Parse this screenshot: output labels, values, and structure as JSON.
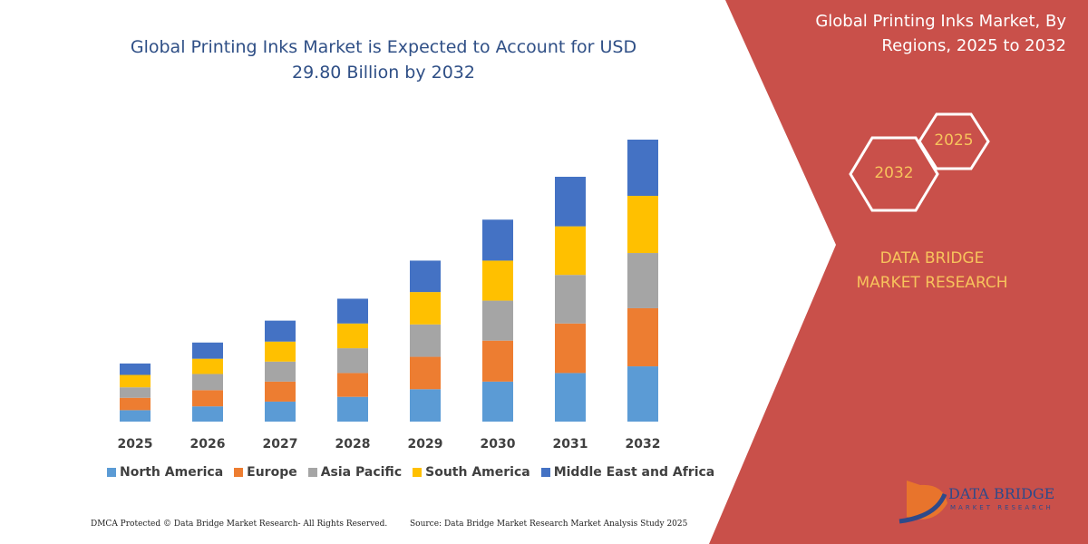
{
  "chart_data": {
    "type": "stacked-bar",
    "title": "Global Printing Inks Market is Expected to Account for USD 29.80 Billion by 2032",
    "categories": [
      "2025",
      "2026",
      "2027",
      "2028",
      "2029",
      "2030",
      "2031",
      "2032"
    ],
    "series": [
      {
        "name": "North America",
        "color": "#5b9bd5",
        "values": [
          1.2,
          1.6,
          2.1,
          2.6,
          3.4,
          4.2,
          5.1,
          5.8
        ]
      },
      {
        "name": "Europe",
        "color": "#ed7d31",
        "values": [
          1.3,
          1.7,
          2.1,
          2.5,
          3.4,
          4.3,
          5.2,
          6.1
        ]
      },
      {
        "name": "Asia Pacific",
        "color": "#a5a5a5",
        "values": [
          1.1,
          1.7,
          2.1,
          2.6,
          3.4,
          4.2,
          5.1,
          5.8
        ]
      },
      {
        "name": "South America",
        "color": "#ffc000",
        "values": [
          1.3,
          1.6,
          2.1,
          2.6,
          3.4,
          4.2,
          5.1,
          6.0
        ]
      },
      {
        "name": "Middle East and Africa",
        "color": "#4472c4",
        "values": [
          1.2,
          1.7,
          2.2,
          2.6,
          3.3,
          4.3,
          5.2,
          5.9
        ]
      }
    ],
    "legend": "bottom"
  },
  "panel": {
    "title": "Global Printing Inks Market, By Regions, 2025 to 2032",
    "start_year": "2025",
    "end_year": "2032",
    "brand": "DATA BRIDGE MARKET RESEARCH"
  },
  "logo": {
    "name": "DATA BRIDGE",
    "tagline": "MARKET RESEARCH"
  },
  "footer": {
    "left": "DMCA Protected © Data Bridge Market Research- All Rights Reserved.",
    "right": "Source: Data Bridge Market Research Market Analysis Study 2025"
  }
}
